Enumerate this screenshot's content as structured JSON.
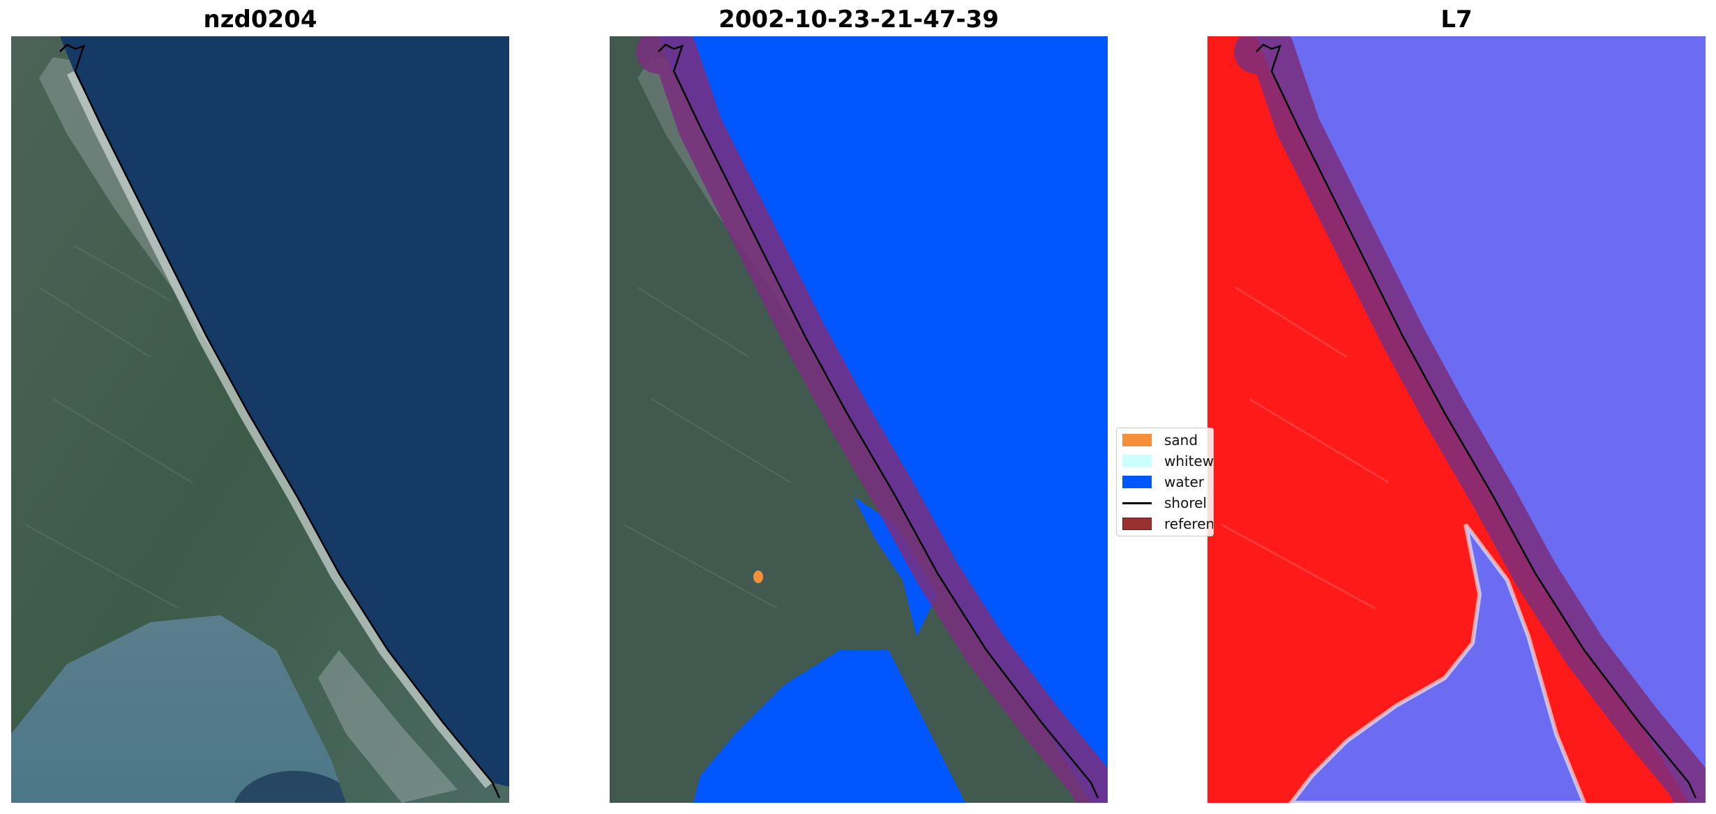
{
  "panels": [
    {
      "title": "nzd0204"
    },
    {
      "title": "2002-10-23-21-47-39"
    },
    {
      "title": "L7"
    }
  ],
  "legend": {
    "items": [
      {
        "label": "sand",
        "color": "#F58F3A"
      },
      {
        "label": "whitew",
        "color": "#CCFFFF"
      },
      {
        "label": "water",
        "color": "#0057FF"
      },
      {
        "label": "shorel",
        "color": "#000000"
      },
      {
        "label": "referen",
        "color": "#9A3030"
      }
    ]
  },
  "colors": {
    "ocean": "#163A66",
    "land": "#3E5A52",
    "water_class": "#0057FF",
    "reference_buffer": "#7A2E7E",
    "index_land": "#FF1A1A",
    "index_water": "#6C6CF2"
  }
}
